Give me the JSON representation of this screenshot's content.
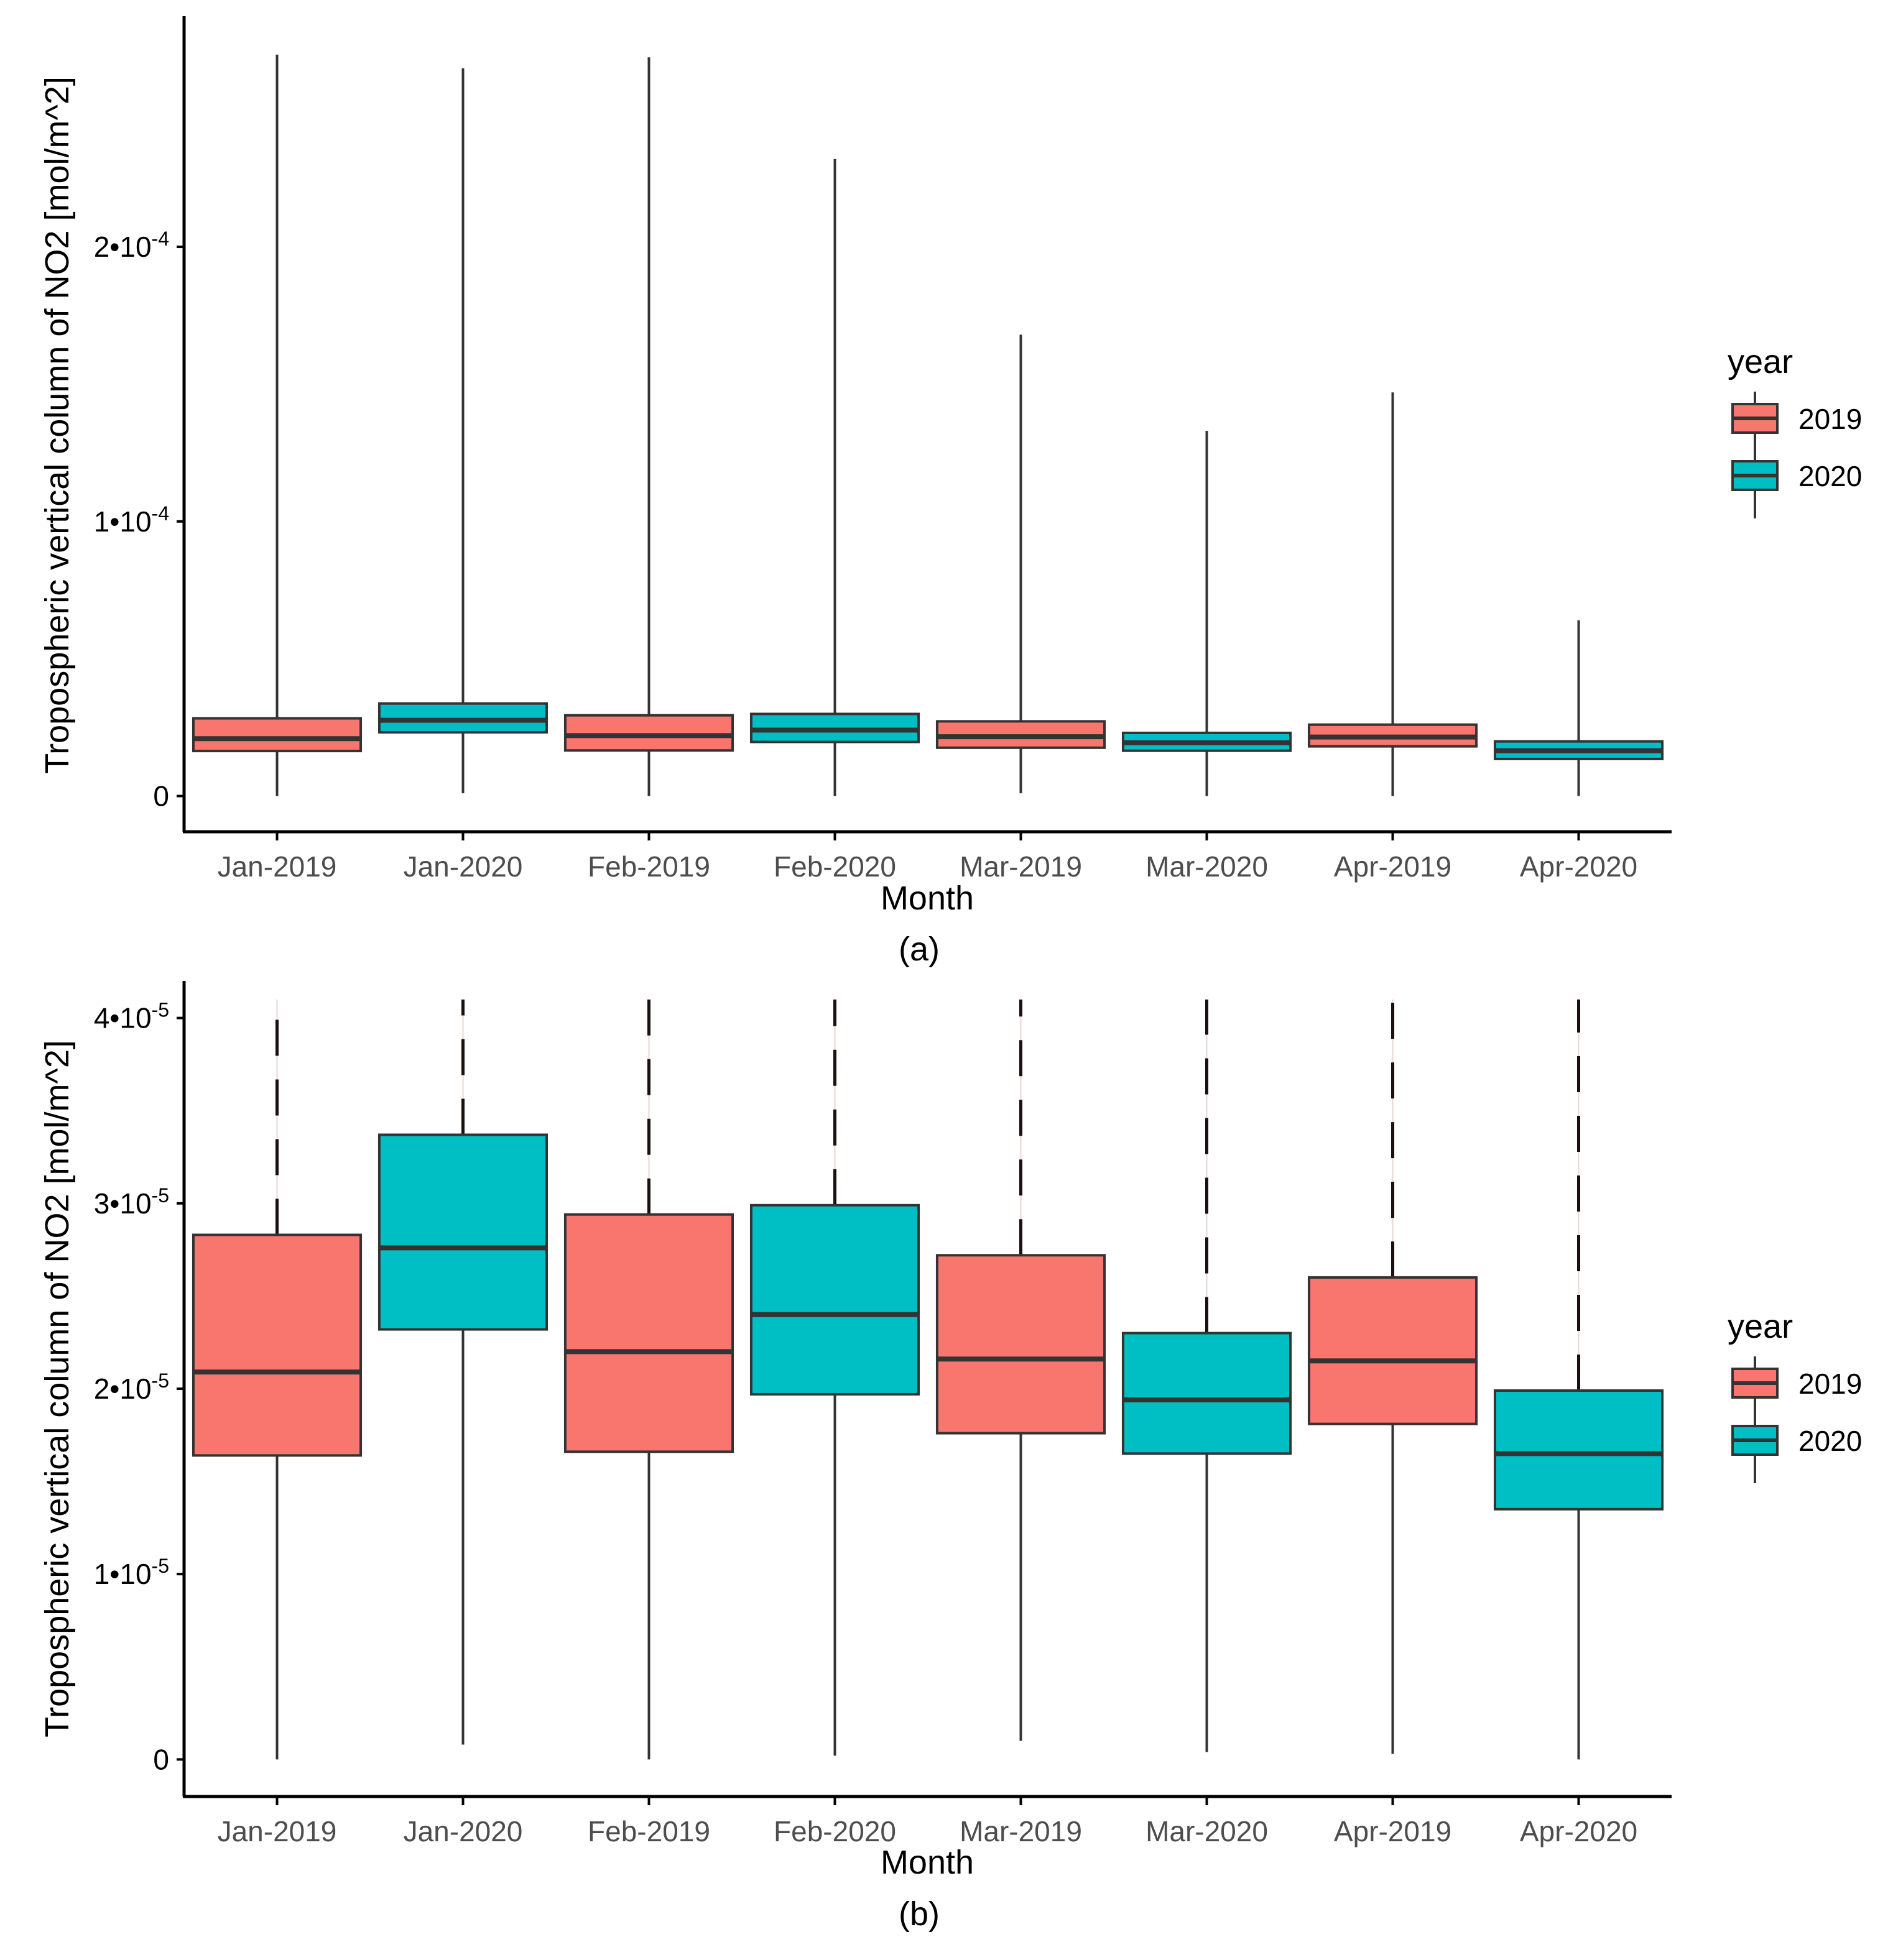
{
  "colors": {
    "y2019": "#F8766D",
    "y2020": "#00BFC4",
    "line": "#333333",
    "axis": "#000000"
  },
  "chart_data": [
    {
      "type": "boxplot",
      "caption": "(a)",
      "xlabel": "Month",
      "ylabel": "Tropospheric vertical column of NO2 [mol/m^2]",
      "categories": [
        "Jan-2019",
        "Jan-2020",
        "Feb-2019",
        "Feb-2020",
        "Mar-2019",
        "Mar-2020",
        "Apr-2019",
        "Apr-2020"
      ],
      "group": [
        "2019",
        "2020",
        "2019",
        "2020",
        "2019",
        "2020",
        "2019",
        "2020"
      ],
      "ylim": [
        -1.3e-05,
        0.000284
      ],
      "yticks": [
        0,
        0.0001,
        0.0002
      ],
      "ytick_labels": [
        {
          "mant": "0",
          "exp": ""
        },
        {
          "mant": "1•10",
          "exp": "-4"
        },
        {
          "mant": "2•10",
          "exp": "-4"
        }
      ],
      "boxes": [
        {
          "min": 0.0,
          "q1": 1.64e-05,
          "median": 2.09e-05,
          "q3": 2.83e-05,
          "max": 0.00027
        },
        {
          "min": 1e-06,
          "q1": 2.32e-05,
          "median": 2.76e-05,
          "q3": 3.37e-05,
          "max": 0.000265
        },
        {
          "min": 0.0,
          "q1": 1.66e-05,
          "median": 2.2e-05,
          "q3": 2.94e-05,
          "max": 0.000269
        },
        {
          "min": 0.0,
          "q1": 1.97e-05,
          "median": 2.4e-05,
          "q3": 2.99e-05,
          "max": 0.000232
        },
        {
          "min": 1e-06,
          "q1": 1.76e-05,
          "median": 2.16e-05,
          "q3": 2.72e-05,
          "max": 0.000168
        },
        {
          "min": 0.0,
          "q1": 1.65e-05,
          "median": 1.94e-05,
          "q3": 2.3e-05,
          "max": 0.000133
        },
        {
          "min": 0.0,
          "q1": 1.81e-05,
          "median": 2.15e-05,
          "q3": 2.6e-05,
          "max": 0.000147
        },
        {
          "min": 0.0,
          "q1": 1.35e-05,
          "median": 1.65e-05,
          "q3": 1.99e-05,
          "max": 6.4e-05
        }
      ],
      "legend": {
        "title": "year",
        "items": [
          "2019",
          "2020"
        ]
      }
    },
    {
      "type": "boxplot",
      "caption": "(b)",
      "xlabel": "Month",
      "ylabel": "Tropospheric vertical column of NO2 [mol/m^2]",
      "categories": [
        "Jan-2019",
        "Jan-2020",
        "Feb-2019",
        "Feb-2020",
        "Mar-2019",
        "Mar-2020",
        "Apr-2019",
        "Apr-2020"
      ],
      "group": [
        "2019",
        "2020",
        "2019",
        "2020",
        "2019",
        "2020",
        "2019",
        "2020"
      ],
      "ylim": [
        -2e-06,
        4.2e-05
      ],
      "yticks": [
        0,
        1e-05,
        2e-05,
        3e-05,
        4e-05
      ],
      "ytick_labels": [
        {
          "mant": "0",
          "exp": ""
        },
        {
          "mant": "1•10",
          "exp": "-5"
        },
        {
          "mant": "2•10",
          "exp": "-5"
        },
        {
          "mant": "3•10",
          "exp": "-5"
        },
        {
          "mant": "4•10",
          "exp": "-5"
        }
      ],
      "whisker_cap": 4.1e-05,
      "boxes": [
        {
          "min": 0.0,
          "q1": 1.64e-05,
          "median": 2.09e-05,
          "q3": 2.83e-05,
          "max": 4.1e-05
        },
        {
          "min": 8e-07,
          "q1": 2.32e-05,
          "median": 2.76e-05,
          "q3": 3.37e-05,
          "max": 4.1e-05
        },
        {
          "min": 0.0,
          "q1": 1.66e-05,
          "median": 2.2e-05,
          "q3": 2.94e-05,
          "max": 4.1e-05
        },
        {
          "min": 2e-07,
          "q1": 1.97e-05,
          "median": 2.4e-05,
          "q3": 2.99e-05,
          "max": 4.1e-05
        },
        {
          "min": 1e-06,
          "q1": 1.76e-05,
          "median": 2.16e-05,
          "q3": 2.72e-05,
          "max": 4.1e-05
        },
        {
          "min": 4e-07,
          "q1": 1.65e-05,
          "median": 1.94e-05,
          "q3": 2.3e-05,
          "max": 4.1e-05
        },
        {
          "min": 3e-07,
          "q1": 1.81e-05,
          "median": 2.15e-05,
          "q3": 2.6e-05,
          "max": 4.1e-05
        },
        {
          "min": 0.0,
          "q1": 1.35e-05,
          "median": 1.65e-05,
          "q3": 1.99e-05,
          "max": 4.1e-05
        }
      ],
      "legend": {
        "title": "year",
        "items": [
          "2019",
          "2020"
        ]
      }
    }
  ]
}
